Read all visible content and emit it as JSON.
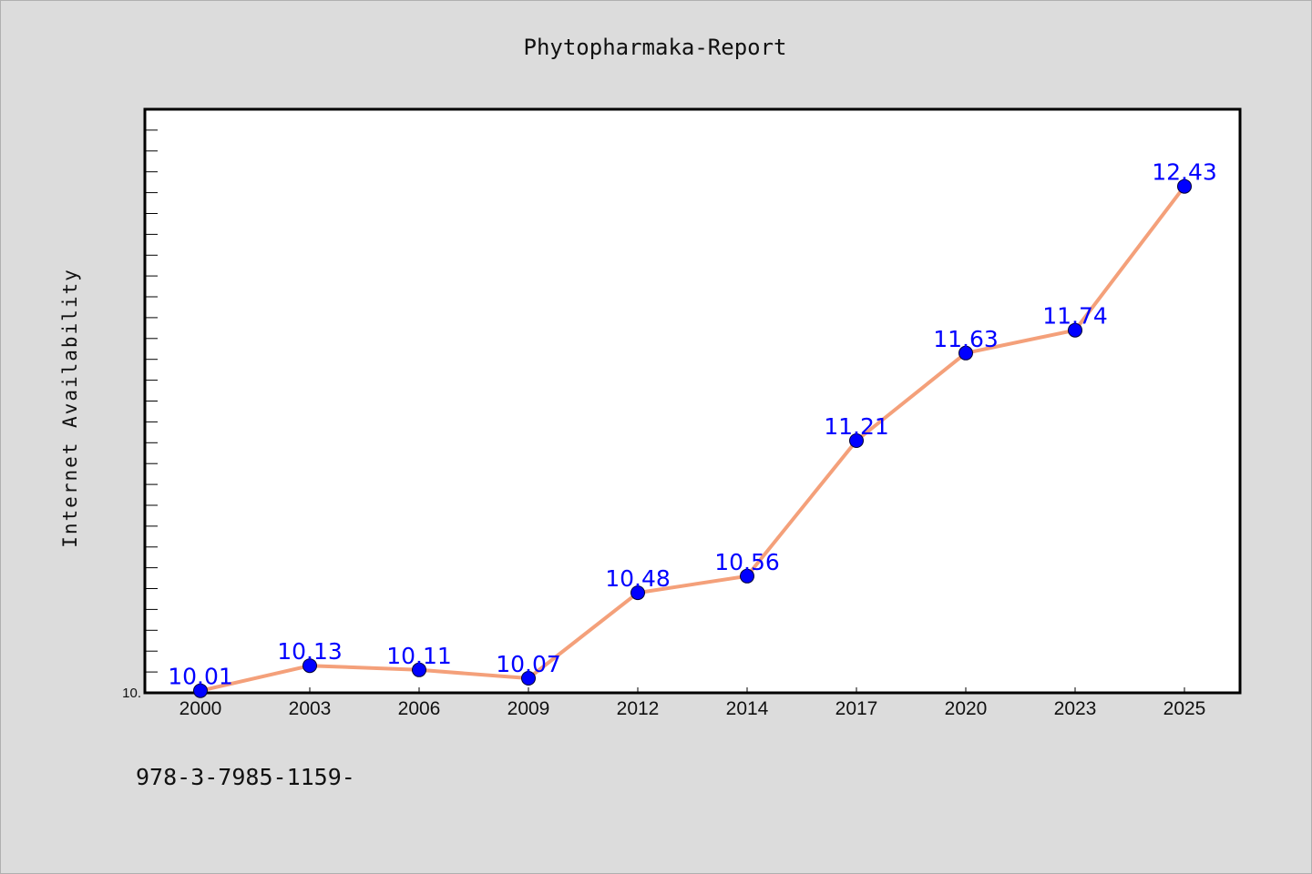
{
  "chart_data": {
    "type": "line",
    "title": "Phytopharmaka-Report",
    "ylabel": "Internet Availability",
    "xlabel": "",
    "categories": [
      "2000",
      "2003",
      "2006",
      "2009",
      "2012",
      "2014",
      "2017",
      "2020",
      "2023",
      "2025"
    ],
    "series": [
      {
        "values": [
          10.01,
          10.13,
          10.11,
          10.07,
          10.48,
          10.56,
          11.21,
          11.63,
          11.74,
          12.43
        ],
        "labels": [
          "10.01",
          "10.13",
          "10.11",
          "10.07",
          "10.48",
          "10.56",
          "11.21",
          "11.63",
          "11.74",
          "12.43"
        ]
      }
    ],
    "ylim": [
      10.0,
      12.8
    ],
    "y_tick_label": "10.",
    "grid": false,
    "legend": "none"
  },
  "footnote": "978-3-7985-1159-",
  "colors": {
    "background": "#dcdcdc",
    "plot_background": "#ffffff",
    "line": "#f4a07a",
    "marker": "#0000ff",
    "data_label": "#0000ff"
  }
}
